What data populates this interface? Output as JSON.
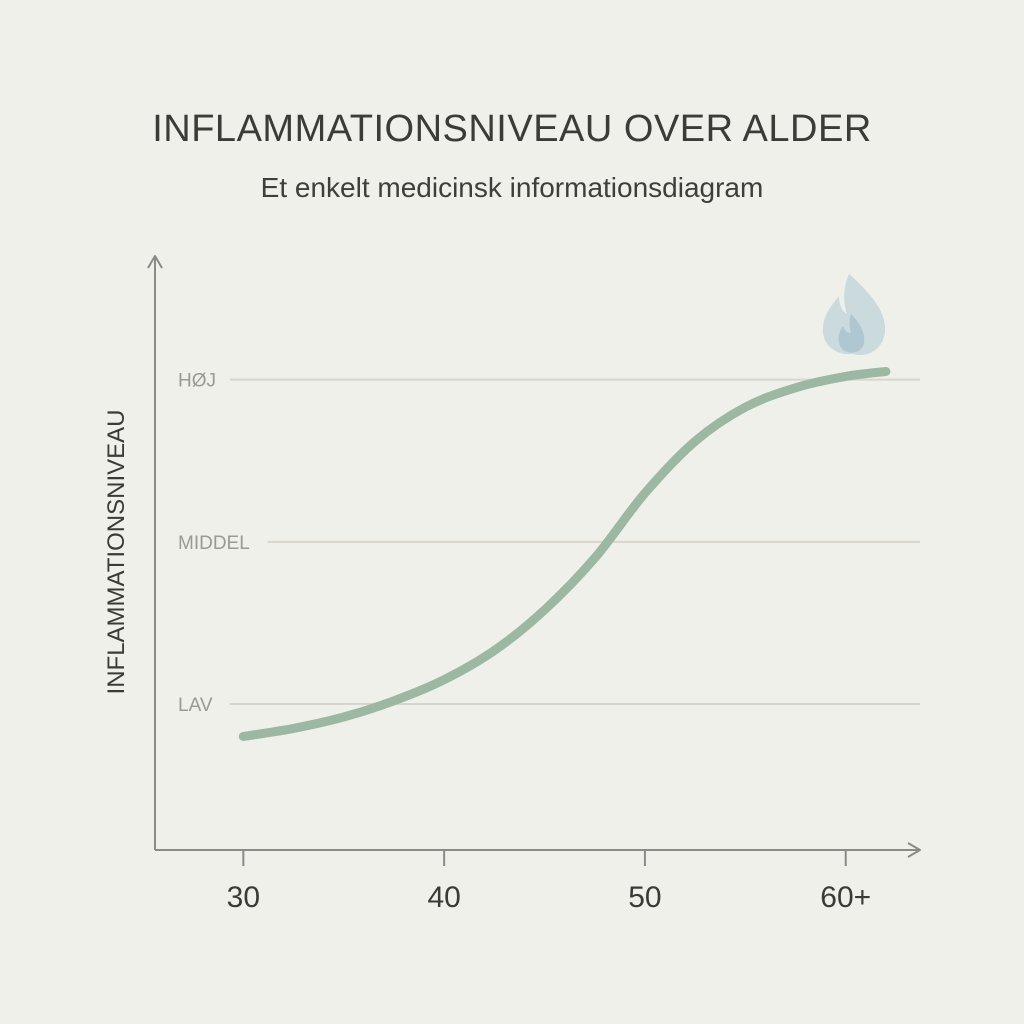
{
  "chart_data": {
    "type": "line",
    "title": "INFLAMMATIONSNIVEAU OVER ALDER",
    "subtitle": "Et enkelt medicinsk informationsdiagram",
    "xlabel": "",
    "ylabel": "INFLAMMATIONSNIVEAU",
    "x_ticks": [
      "30",
      "40",
      "50",
      "60+"
    ],
    "x_tick_values": [
      30,
      40,
      50,
      60
    ],
    "y_levels": [
      {
        "label": "LAV",
        "value": 1
      },
      {
        "label": "MIDDEL",
        "value": 2
      },
      {
        "label": "HØJ",
        "value": 3
      }
    ],
    "xlim": [
      25.6,
      63.6
    ],
    "ylim": [
      0.1,
      3.75
    ],
    "grid": true,
    "series": [
      {
        "x": [
          30,
          32.5,
          35,
          37.5,
          40,
          42.5,
          45,
          47.5,
          50,
          52.5,
          55,
          57.5,
          60,
          62
        ],
        "y": [
          0.8,
          0.85,
          0.92,
          1.02,
          1.15,
          1.33,
          1.58,
          1.9,
          2.3,
          2.62,
          2.83,
          2.95,
          3.02,
          3.05
        ]
      }
    ],
    "marker_icon": "flame-icon",
    "colors": {
      "line": "#9cb8a2",
      "grid": "#d6d6cf",
      "axis": "#8a8a86",
      "flame_outer": "#c7d7da",
      "flame_inner": "#a9c3cf"
    }
  }
}
